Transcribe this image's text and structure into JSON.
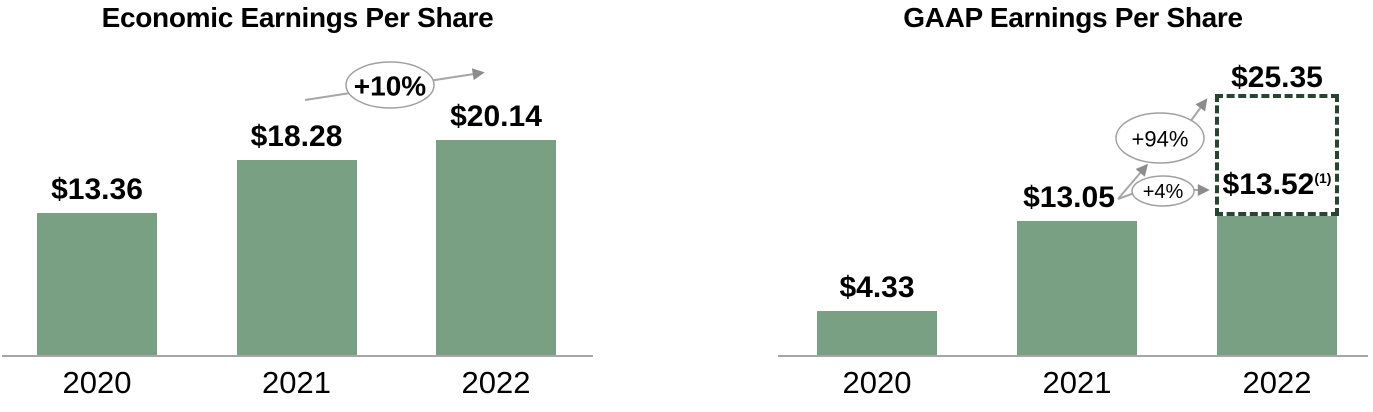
{
  "colors": {
    "bar_fill": "#7aa083",
    "projected_outline": "#2a4433",
    "axis_line": "#a6a6a6",
    "callout_line": "#a6a6a6",
    "callout_oval_border": "#a0a0a0",
    "arrowhead": "#8c8c8c",
    "text": "#000000"
  },
  "chart_data": [
    {
      "type": "bar",
      "title": "Economic Earnings Per Share",
      "categories": [
        "2020",
        "2021",
        "2022"
      ],
      "values": [
        13.36,
        18.28,
        20.14
      ],
      "value_labels": [
        "$13.36",
        "$18.28",
        "$20.14"
      ],
      "ylim": [
        0,
        20.14
      ],
      "xlabel": "",
      "ylabel": "",
      "grid": "off",
      "legend": "none",
      "annotations": [
        {
          "label": "+10%",
          "shape": "oval-with-arrow",
          "from": "2021",
          "to": "2022"
        }
      ]
    },
    {
      "type": "bar",
      "title": "GAAP Earnings Per Share",
      "categories": [
        "2020",
        "2021",
        "2022"
      ],
      "values": [
        4.33,
        13.05,
        13.52
      ],
      "value_labels": [
        "$4.33",
        "$13.05",
        "$13.52"
      ],
      "value_label_superscripts": [
        "",
        "",
        "(1)"
      ],
      "projected": {
        "value": 25.35,
        "label": "$25.35",
        "category": "2022",
        "style": "dashed-outline"
      },
      "ylim": [
        0,
        25.35
      ],
      "xlabel": "",
      "ylabel": "",
      "grid": "off",
      "legend": "none",
      "annotations": [
        {
          "label": "+94%",
          "shape": "oval-with-arrow",
          "from": "2021",
          "to": "2022 projected $25.35"
        },
        {
          "label": "+4%",
          "shape": "oval-with-arrow",
          "from": "2021",
          "to": "2022 $13.52"
        }
      ]
    }
  ]
}
